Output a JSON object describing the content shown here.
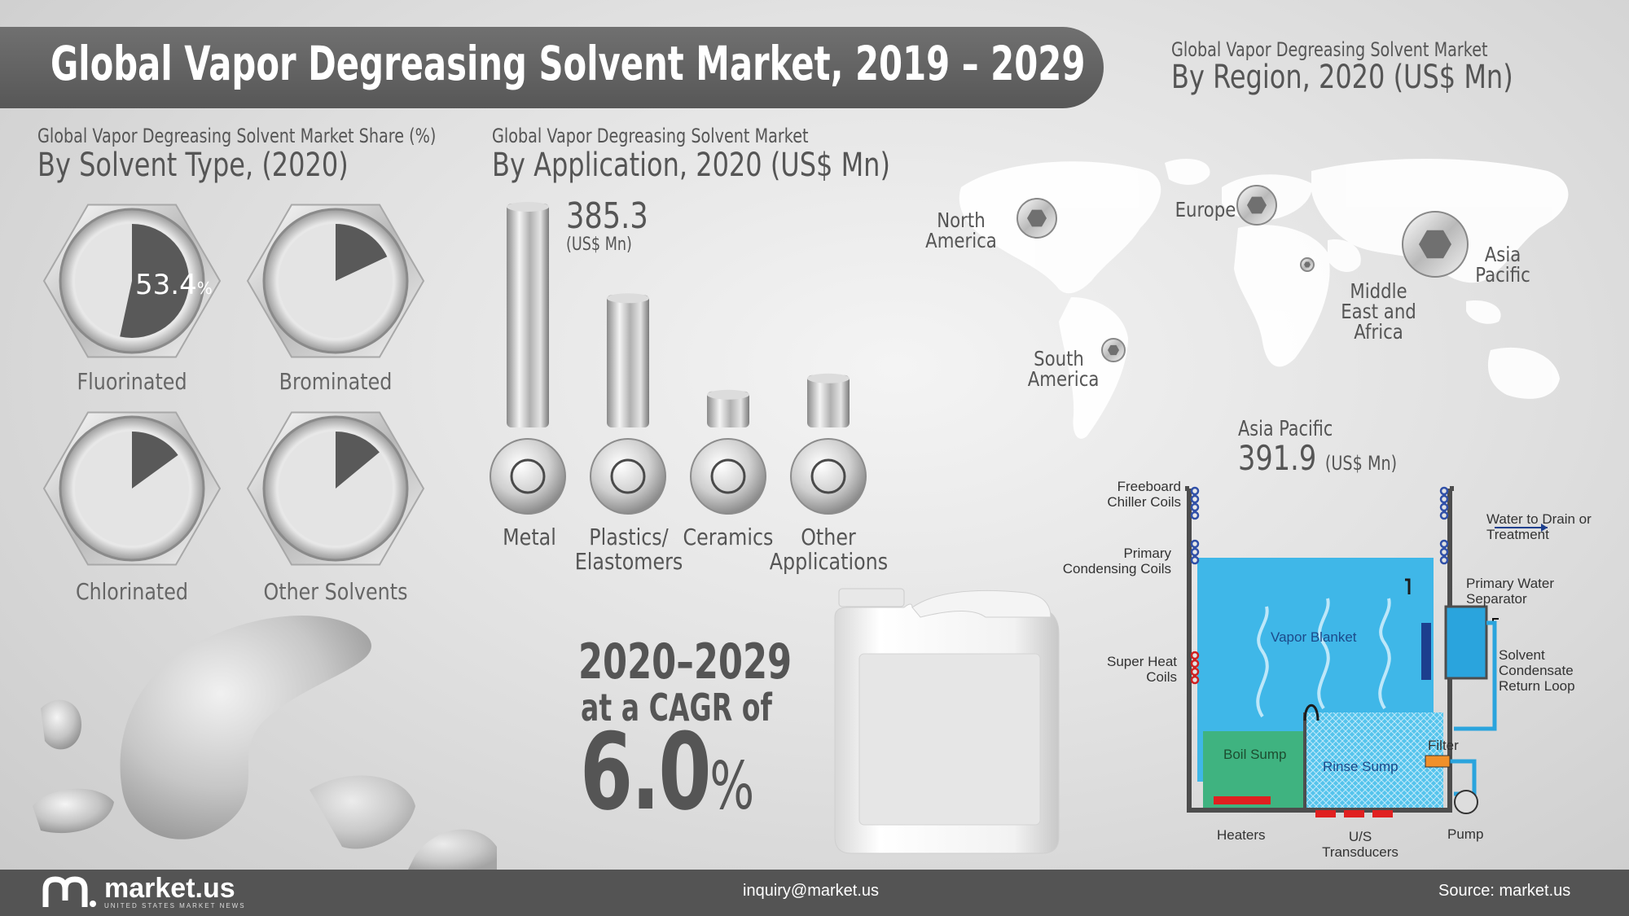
{
  "title": "Global Vapor Degreasing Solvent Market, 2019 – 2029",
  "solvent_section": {
    "subtitle": "Global Vapor Degreasing Solvent Market Share (%)",
    "heading": "By Solvent Type, (2020)",
    "highlight_value": "53.4",
    "highlight_unit": "%"
  },
  "application_section": {
    "subtitle": "Global Vapor Degreasing Solvent Market",
    "heading": "By Application, 2020 (US$ Mn)",
    "top_value": "385.3",
    "top_unit": "(US$ Mn)"
  },
  "region_section": {
    "subtitle": "Global Vapor Degreasing Solvent Market",
    "heading": "By Region, 2020 (US$ Mn)",
    "labels": {
      "north_america": "North America",
      "europe": "Europe",
      "asia_pacific": "Asia Pacific",
      "middle_east_africa": "Middle East and Africa",
      "south_america": "South America"
    },
    "callout_region": "Asia Pacific",
    "callout_value": "391.9",
    "callout_unit": "(US$ Mn)"
  },
  "cagr": {
    "period": "2020–2029",
    "text": "at a CAGR of",
    "value": "6.0",
    "unit": "%"
  },
  "diagram_labels": {
    "freeboard": "Freeboard Chiller Coils",
    "primary_condensing": "Primary Condensing Coils",
    "super_heat": "Super Heat Coils",
    "water_drain": "Water to Drain or Treatment",
    "water_separator": "Primary Water Separator",
    "condensate_loop": "Solvent Condensate Return Loop",
    "vapor_blanket": "Vapor Blanket",
    "boil_sump": "Boil Sump",
    "rinse_sump": "Rinse Sump",
    "filter": "Filter",
    "heaters": "Heaters",
    "transducers": "U/S Transducers",
    "pump": "Pump"
  },
  "footer": {
    "brand": "market.us",
    "brand_tagline": "UNITED STATES MARKET NEWS",
    "email": "inquiry@market.us",
    "source": "Source: market.us"
  },
  "chart_data": [
    {
      "type": "pie",
      "title": "By Solvent Type, (2020)",
      "categories": [
        "Fluorinated",
        "Brominated",
        "Chlorinated",
        "Other Solvents"
      ],
      "values": [
        53.4,
        18,
        15,
        14
      ],
      "unit": "%"
    },
    {
      "type": "bar",
      "title": "By Application, 2020 (US$ Mn)",
      "categories": [
        "Metal",
        "Plastics/ Elastomers",
        "Ceramics",
        "Other Applications"
      ],
      "values": [
        385.3,
        228,
        62,
        90
      ],
      "ylabel": "US$ Mn"
    }
  ]
}
